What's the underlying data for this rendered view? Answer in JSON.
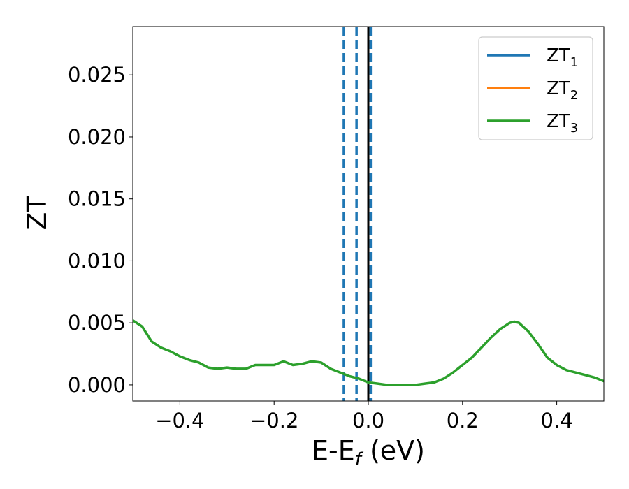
{
  "chart_data": {
    "type": "line",
    "xlabel": "E-E",
    "xlabel_sub": "f",
    "xlabel_unit": " (eV)",
    "ylabel": "ZT",
    "xlim": [
      -0.5,
      0.5
    ],
    "ylim": [
      -0.0013,
      0.0289
    ],
    "x_ticks": [
      -0.4,
      -0.2,
      0.0,
      0.2,
      0.4
    ],
    "x_tick_labels": [
      "−0.4",
      "−0.2",
      "0.0",
      "0.2",
      "0.4"
    ],
    "y_ticks": [
      0.0,
      0.005,
      0.01,
      0.015,
      0.02,
      0.025
    ],
    "y_tick_labels": [
      "0.000",
      "0.005",
      "0.010",
      "0.015",
      "0.020",
      "0.025"
    ],
    "grid": false,
    "legend_position": "top-right",
    "series": [
      {
        "name": "ZT",
        "name_sub": "1",
        "color": "#1f77b4",
        "x": [],
        "y": []
      },
      {
        "name": "ZT",
        "name_sub": "2",
        "color": "#ff7f0e",
        "x": [],
        "y": []
      },
      {
        "name": "ZT",
        "name_sub": "3",
        "color": "#2ca02c",
        "x": [
          -0.5,
          -0.48,
          -0.46,
          -0.44,
          -0.42,
          -0.4,
          -0.38,
          -0.36,
          -0.34,
          -0.32,
          -0.3,
          -0.28,
          -0.26,
          -0.24,
          -0.22,
          -0.2,
          -0.18,
          -0.16,
          -0.14,
          -0.12,
          -0.1,
          -0.08,
          -0.06,
          -0.04,
          -0.02,
          0.0,
          0.02,
          0.04,
          0.06,
          0.08,
          0.1,
          0.12,
          0.14,
          0.16,
          0.18,
          0.2,
          0.22,
          0.24,
          0.26,
          0.28,
          0.3,
          0.31,
          0.32,
          0.34,
          0.36,
          0.38,
          0.4,
          0.42,
          0.44,
          0.46,
          0.48,
          0.5
        ],
        "y": [
          0.0052,
          0.0047,
          0.0035,
          0.003,
          0.0027,
          0.0023,
          0.002,
          0.0018,
          0.0014,
          0.0013,
          0.0014,
          0.0013,
          0.0013,
          0.0016,
          0.0016,
          0.0016,
          0.0019,
          0.0016,
          0.0017,
          0.0019,
          0.0018,
          0.0013,
          0.001,
          0.0007,
          0.0005,
          0.0002,
          0.0001,
          0.0,
          0.0,
          0.0,
          0.0,
          0.0001,
          0.0002,
          0.0005,
          0.001,
          0.0016,
          0.0022,
          0.003,
          0.0038,
          0.0045,
          0.005,
          0.0051,
          0.005,
          0.0043,
          0.0033,
          0.0022,
          0.0016,
          0.0012,
          0.001,
          0.0008,
          0.0006,
          0.0003
        ]
      }
    ],
    "vertical_lines": [
      {
        "x": -0.052,
        "style": "dashed",
        "color": "#1f77b4"
      },
      {
        "x": -0.025,
        "style": "dashed",
        "color": "#1f77b4"
      },
      {
        "x": 0.005,
        "style": "dashed",
        "color": "#1f77b4"
      },
      {
        "x": 0.0,
        "style": "solid",
        "color": "#000000"
      }
    ]
  }
}
